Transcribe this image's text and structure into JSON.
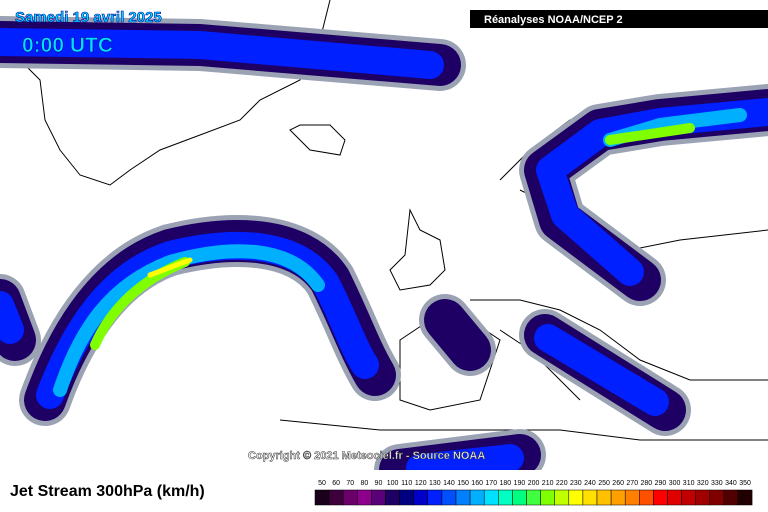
{
  "header": {
    "date": "Samedi 19 avril 2025",
    "time": "0:00 UTC",
    "source": "Réanalyses NOAA/NCEP 2"
  },
  "footer": {
    "copyright": "Copyright © 2021 Meteociel.fr - Source NOAA",
    "variable": "Jet Stream 300hPa (km/h)"
  },
  "legend": {
    "values": [
      50,
      60,
      70,
      80,
      90,
      100,
      110,
      120,
      130,
      140,
      150,
      160,
      170,
      180,
      190,
      200,
      210,
      220,
      230,
      240,
      250,
      260,
      270,
      280,
      290,
      300,
      310,
      320,
      330,
      340,
      350
    ],
    "colors": [
      "#1a001a",
      "#3d003d",
      "#6b006b",
      "#8c008c",
      "#5a0078",
      "#1e0064",
      "#000080",
      "#0000c8",
      "#0020ff",
      "#0050ff",
      "#0080ff",
      "#00b0ff",
      "#00e0ff",
      "#00ffc0",
      "#00ff80",
      "#40ff40",
      "#80ff00",
      "#c0ff00",
      "#ffff00",
      "#ffe000",
      "#ffc000",
      "#ffa000",
      "#ff8000",
      "#ff5000",
      "#ff0000",
      "#e00000",
      "#c00000",
      "#a00000",
      "#800000",
      "#500000",
      "#200000"
    ]
  }
}
